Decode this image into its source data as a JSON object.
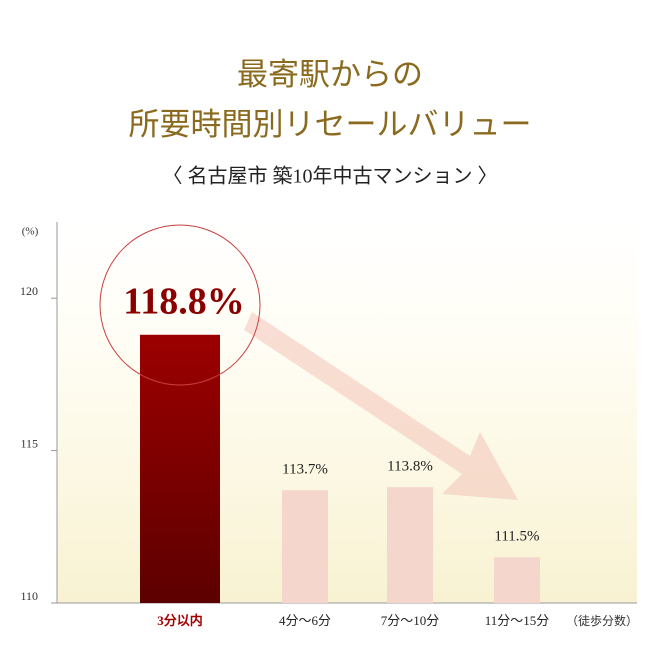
{
  "chart_data": {
    "type": "bar",
    "title": [
      "最寄駅からの",
      "所要時間別リセールバリュー"
    ],
    "subtitle": "〈 名古屋市 築10年中古マンション 〉",
    "y_label": "(%)",
    "x_label": "（徒歩分数）",
    "categories": [
      "3分以内",
      "4分〜6分",
      "7分〜10分",
      "11分〜15分"
    ],
    "values": [
      118.8,
      113.7,
      113.8,
      111.5
    ],
    "value_labels": [
      "118.8%",
      "113.7%",
      "113.8%",
      "111.5%"
    ],
    "colors": [
      "#8f0000",
      "#f5d6cc",
      "#f5d6cc",
      "#f5d6cc"
    ],
    "ylim": [
      110,
      122.5
    ],
    "yticks": [
      110,
      115,
      120
    ]
  }
}
